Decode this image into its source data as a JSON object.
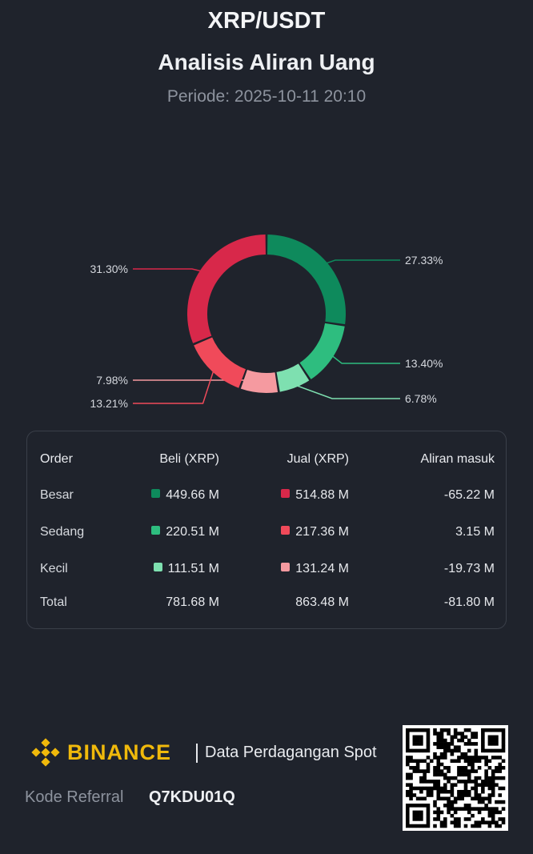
{
  "header": {
    "title": "XRP/USDT",
    "subtitle": "Analisis Aliran Uang",
    "period": "Periode: 2025-10-11 20:10"
  },
  "chart_data": {
    "type": "pie",
    "title": "Analisis Aliran Uang",
    "slices": [
      {
        "name": "Beli Besar",
        "value": 27.33,
        "label": "27.33%",
        "color": "#0e8a5c",
        "side": "right"
      },
      {
        "name": "Beli Sedang",
        "value": 13.4,
        "label": "13.40%",
        "color": "#2ebd7f",
        "side": "right"
      },
      {
        "name": "Beli Kecil",
        "value": 6.78,
        "label": "6.78%",
        "color": "#7ee0b0",
        "side": "right"
      },
      {
        "name": "Jual Kecil",
        "value": 7.98,
        "label": "7.98%",
        "color": "#f59aa0",
        "side": "left"
      },
      {
        "name": "Jual Sedang",
        "value": 13.21,
        "label": "13.21%",
        "color": "#f04a5a",
        "side": "left"
      },
      {
        "name": "Jual Besar",
        "value": 31.3,
        "label": "31.30%",
        "color": "#d8284a",
        "side": "left"
      }
    ]
  },
  "table": {
    "headers": [
      "Order",
      "Beli (XRP)",
      "Jual (XRP)",
      "Aliran masuk"
    ],
    "rows": [
      {
        "label": "Besar",
        "buy": "449.66 M",
        "sell": "514.88 M",
        "net": "-65.22 M",
        "buy_color": "#0e8a5c",
        "sell_color": "#d8284a"
      },
      {
        "label": "Sedang",
        "buy": "220.51 M",
        "sell": "217.36 M",
        "net": "3.15 M",
        "buy_color": "#2ebd7f",
        "sell_color": "#f04a5a"
      },
      {
        "label": "Kecil",
        "buy": "111.51 M",
        "sell": "131.24 M",
        "net": "-19.73 M",
        "buy_color": "#7ee0b0",
        "sell_color": "#f59aa0"
      }
    ],
    "total": {
      "label": "Total",
      "buy": "781.68 M",
      "sell": "863.48 M",
      "net": "-81.80 M"
    }
  },
  "footer": {
    "brand": "BINANCE",
    "brand_color": "#f0b90b",
    "description": "Data Perdagangan Spot",
    "ref_label": "Kode Referral",
    "ref_code": "Q7KDU01Q"
  }
}
